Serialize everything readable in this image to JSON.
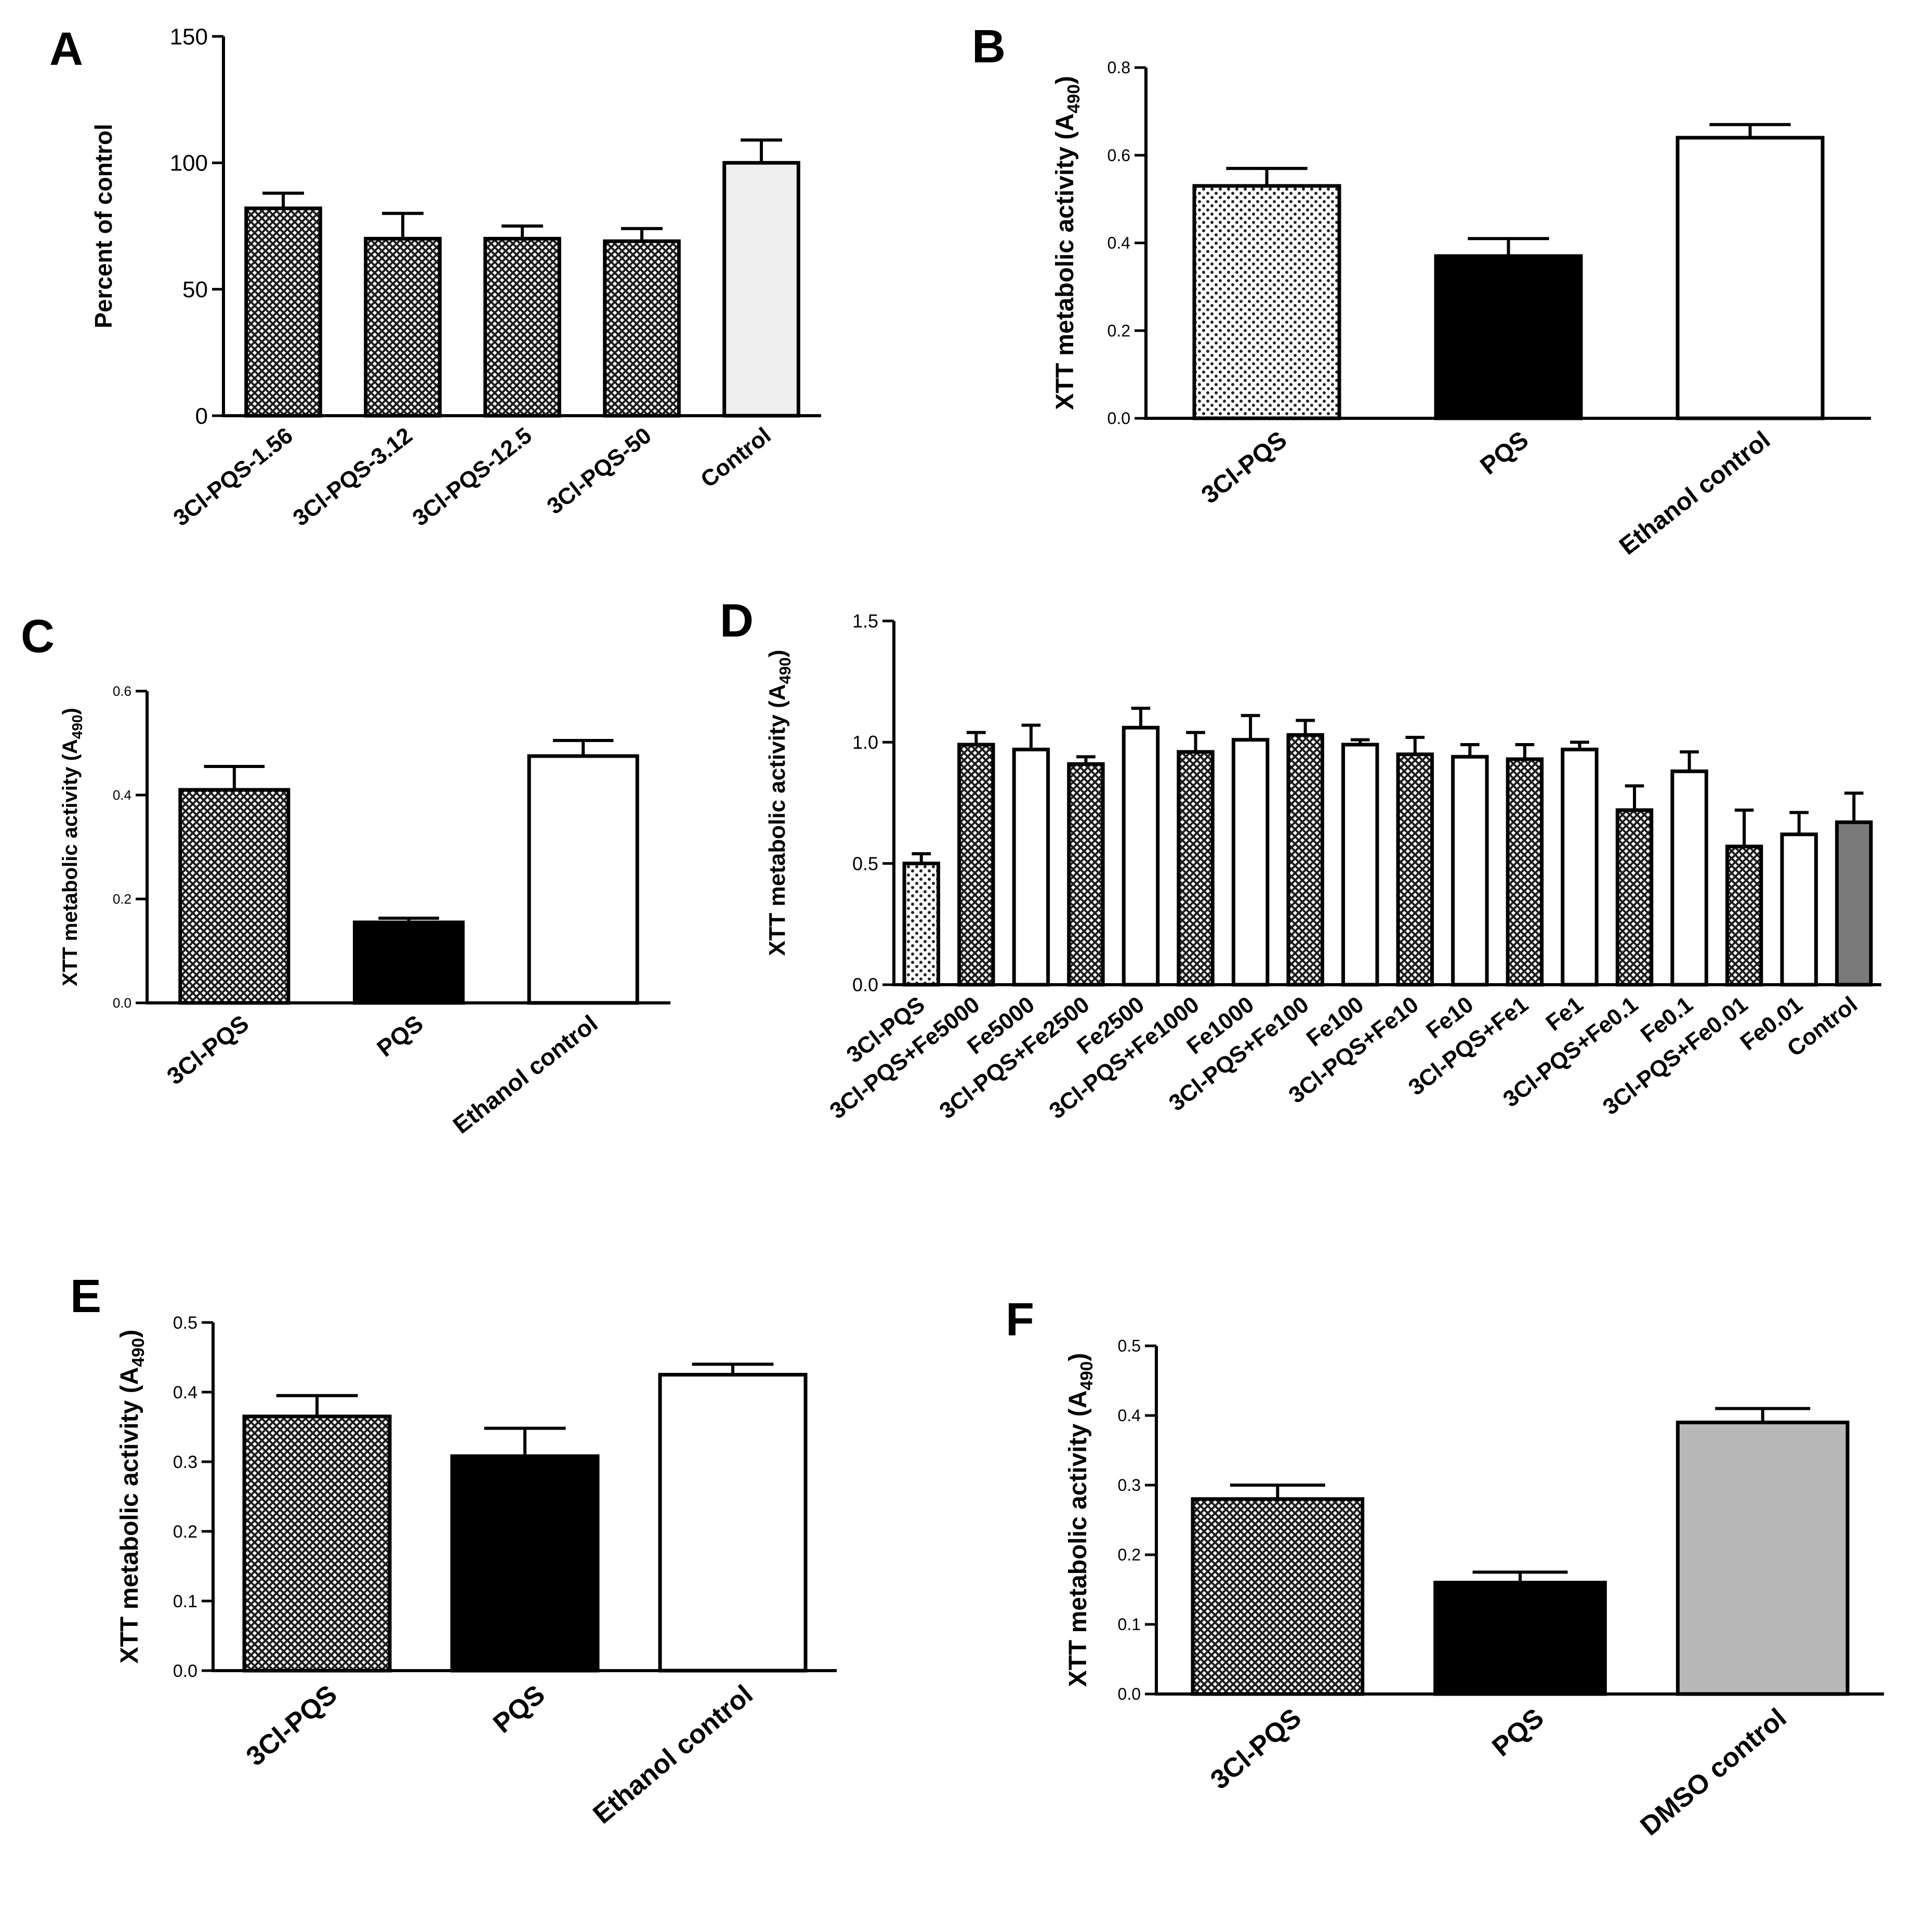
{
  "figure": {
    "fills": {
      "crosshatch": "#2a2a2a",
      "dots": "#ffffff",
      "solid_black": "#000000",
      "white": "#ffffff",
      "light_gray": "#eeeeee",
      "mid_gray": "#b8b8b8",
      "dark_gray": "#7a7a7a"
    }
  },
  "chart_data": [
    {
      "panel": "A",
      "type": "bar",
      "categories": [
        "3Cl-PQS-1.56",
        "3Cl-PQS-3.12",
        "3Cl-PQS-12.5",
        "3Cl-PQS-50",
        "Control"
      ],
      "values": [
        82,
        70,
        70,
        69,
        100
      ],
      "errors": [
        6,
        10,
        5,
        5,
        9
      ],
      "fills": [
        "crosshatch",
        "crosshatch",
        "crosshatch",
        "crosshatch",
        "light_gray"
      ],
      "ylabel": "Percent of control",
      "ylim": [
        0,
        150
      ],
      "yticks": [
        "0",
        "50",
        "100",
        "150"
      ],
      "grid": false,
      "legend": "none"
    },
    {
      "panel": "B",
      "type": "bar",
      "categories": [
        "3Cl-PQS",
        "PQS",
        "Ethanol control"
      ],
      "values": [
        0.53,
        0.37,
        0.64
      ],
      "errors": [
        0.04,
        0.04,
        0.03
      ],
      "fills": [
        "dots",
        "solid_black",
        "white"
      ],
      "ylabel": "XTT metabolic activity (A",
      "ylabel_sub": "490",
      "ylabel_end": ")",
      "ylim": [
        0,
        0.8
      ],
      "yticks": [
        "0.0",
        "0.2",
        "0.4",
        "0.6",
        "0.8"
      ],
      "grid": false,
      "legend": "none"
    },
    {
      "panel": "C",
      "type": "bar",
      "categories": [
        "3Cl-PQS",
        "PQS",
        "Ethanol control"
      ],
      "values": [
        0.41,
        0.155,
        0.475
      ],
      "errors": [
        0.045,
        0.008,
        0.03
      ],
      "fills": [
        "crosshatch",
        "solid_black",
        "white"
      ],
      "ylabel": "XTT metabolic activity (A",
      "ylabel_sub": "490",
      "ylabel_end": ")",
      "ylim": [
        0,
        0.6
      ],
      "yticks": [
        "0.0",
        "0.2",
        "0.4",
        "0.6"
      ],
      "grid": false,
      "legend": "none"
    },
    {
      "panel": "D",
      "type": "bar",
      "categories": [
        "3Cl-PQS",
        "3Cl-PQS+Fe5000",
        "Fe5000",
        "3Cl-PQS+Fe2500",
        "Fe2500",
        "3Cl-PQS+Fe1000",
        "Fe1000",
        "3Cl-PQS+Fe100",
        "Fe100",
        "3Cl-PQS+Fe10",
        "Fe10",
        "3Cl-PQS+Fe1",
        "Fe1",
        "3Cl-PQS+Fe0.1",
        "Fe0.1",
        "3Cl-PQS+Fe0.01",
        "Fe0.01",
        "Control"
      ],
      "values": [
        0.5,
        0.99,
        0.97,
        0.91,
        1.06,
        0.96,
        1.01,
        1.03,
        0.99,
        0.95,
        0.94,
        0.93,
        0.97,
        0.72,
        0.88,
        0.57,
        0.62,
        0.67
      ],
      "errors": [
        0.04,
        0.05,
        0.1,
        0.03,
        0.08,
        0.08,
        0.1,
        0.06,
        0.02,
        0.07,
        0.05,
        0.06,
        0.03,
        0.1,
        0.08,
        0.15,
        0.09,
        0.12
      ],
      "fills": [
        "dots",
        "crosshatch",
        "white",
        "crosshatch",
        "white",
        "crosshatch",
        "white",
        "crosshatch",
        "white",
        "crosshatch",
        "white",
        "crosshatch",
        "white",
        "crosshatch",
        "white",
        "crosshatch",
        "white",
        "dark_gray"
      ],
      "ylabel": "XTT metabolic activity (A",
      "ylabel_sub": "490",
      "ylabel_end": ")",
      "ylim": [
        0,
        1.5
      ],
      "yticks": [
        "0.0",
        "0.5",
        "1.0",
        "1.5"
      ],
      "grid": false,
      "legend": "none"
    },
    {
      "panel": "E",
      "type": "bar",
      "categories": [
        "3Cl-PQS",
        "PQS",
        "Ethanol control"
      ],
      "values": [
        0.365,
        0.308,
        0.425
      ],
      "errors": [
        0.03,
        0.04,
        0.015
      ],
      "fills": [
        "crosshatch",
        "solid_black",
        "white"
      ],
      "ylabel": "XTT metabolic activity (A",
      "ylabel_sub": "490",
      "ylabel_end": ")",
      "ylim": [
        0,
        0.5
      ],
      "yticks": [
        "0.0",
        "0.1",
        "0.2",
        "0.3",
        "0.4",
        "0.5"
      ],
      "grid": false,
      "legend": "none"
    },
    {
      "panel": "F",
      "type": "bar",
      "categories": [
        "3Cl-PQS",
        "PQS",
        "DMSO control"
      ],
      "values": [
        0.28,
        0.16,
        0.39
      ],
      "errors": [
        0.02,
        0.015,
        0.02
      ],
      "fills": [
        "crosshatch",
        "solid_black",
        "mid_gray"
      ],
      "ylabel": "XTT metabolic activity (A",
      "ylabel_sub": "490",
      "ylabel_end": ")",
      "ylim": [
        0,
        0.5
      ],
      "yticks": [
        "0.0",
        "0.1",
        "0.2",
        "0.3",
        "0.4",
        "0.5"
      ],
      "grid": false,
      "legend": "none"
    }
  ]
}
